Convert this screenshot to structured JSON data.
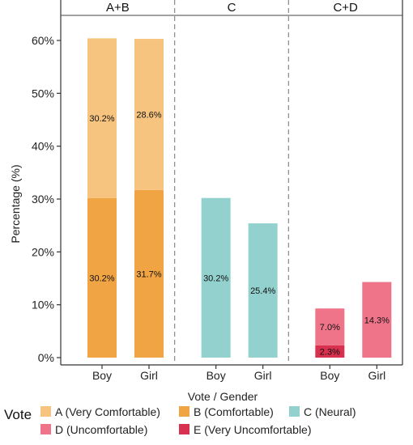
{
  "chart_data": {
    "type": "bar",
    "stacked": true,
    "groups": [
      "A+B",
      "C",
      "C+D"
    ],
    "categories": [
      "Boy",
      "Girl"
    ],
    "xlabel": "Vote  /  Gender",
    "ylabel": "Percentage  (%)",
    "ylim": [
      0,
      64
    ],
    "yticks": [
      0,
      10,
      20,
      30,
      40,
      50,
      60
    ],
    "ytick_suffix": "%",
    "legend_title": "Vote",
    "legend_position": "bottom",
    "series": [
      {
        "name": "A (Very Comfortable)",
        "color": "#f6c47f"
      },
      {
        "name": "B (Comfortable)",
        "color": "#f0a444"
      },
      {
        "name": "C (Neural)",
        "color": "#93d1cf"
      },
      {
        "name": "D (Uncomfortable)",
        "color": "#ef7489"
      },
      {
        "name": "E (Very Uncomfortable)",
        "color": "#d8304f"
      }
    ],
    "bars": [
      {
        "group": "A+B",
        "category": "Boy",
        "segments": [
          {
            "series": "B (Comfortable)",
            "value": 30.2,
            "label": "30.2%"
          },
          {
            "series": "A (Very Comfortable)",
            "value": 30.2,
            "label": "30.2%"
          }
        ]
      },
      {
        "group": "A+B",
        "category": "Girl",
        "segments": [
          {
            "series": "B (Comfortable)",
            "value": 31.7,
            "label": "31.7%"
          },
          {
            "series": "A (Very Comfortable)",
            "value": 28.6,
            "label": "28.6%"
          }
        ]
      },
      {
        "group": "C",
        "category": "Boy",
        "segments": [
          {
            "series": "C (Neural)",
            "value": 30.2,
            "label": "30.2%"
          }
        ]
      },
      {
        "group": "C",
        "category": "Girl",
        "segments": [
          {
            "series": "C (Neural)",
            "value": 25.4,
            "label": "25.4%"
          }
        ]
      },
      {
        "group": "C+D",
        "category": "Boy",
        "segments": [
          {
            "series": "E (Very Uncomfortable)",
            "value": 2.3,
            "label": "2.3%"
          },
          {
            "series": "D (Uncomfortable)",
            "value": 7.0,
            "label": "7.0%"
          }
        ]
      },
      {
        "group": "C+D",
        "category": "Girl",
        "segments": [
          {
            "series": "D (Uncomfortable)",
            "value": 14.3,
            "label": "14.3%"
          }
        ]
      }
    ]
  }
}
